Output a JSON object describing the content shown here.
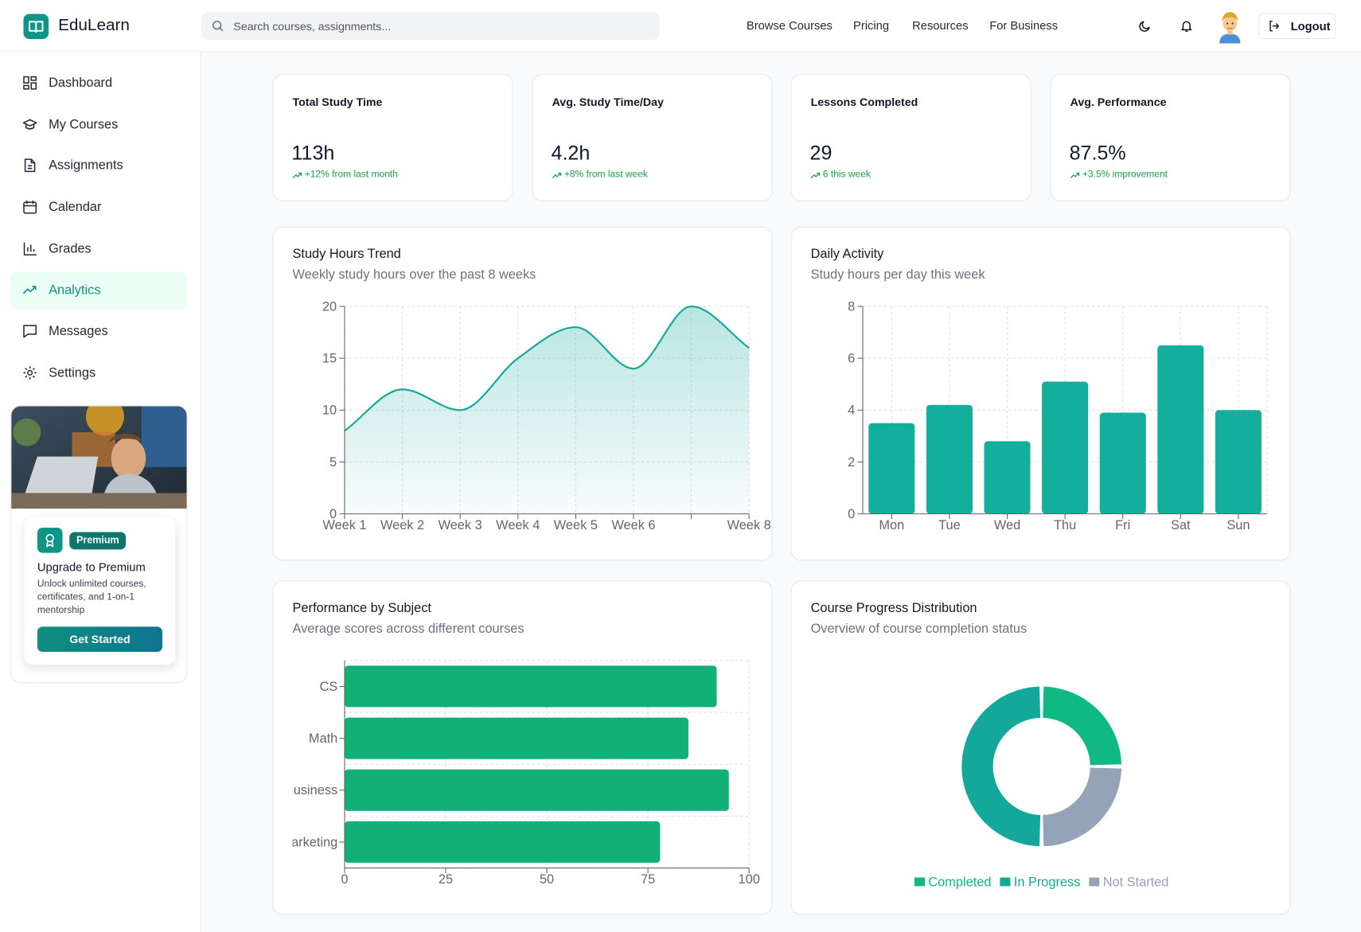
{
  "header": {
    "brand": "EduLearn",
    "search_placeholder": "Search courses, assignments...",
    "nav": [
      "Browse Courses",
      "Pricing",
      "Resources",
      "For Business"
    ],
    "logout": "Logout"
  },
  "sidebar": {
    "items": [
      "Dashboard",
      "My Courses",
      "Assignments",
      "Calendar",
      "Grades",
      "Analytics",
      "Messages",
      "Settings"
    ]
  },
  "promo": {
    "badge": "Premium",
    "title": "Upgrade to Premium",
    "text": "Unlock unlimited courses, certificates, and 1-on-1 mentorship",
    "button": "Get Started"
  },
  "stats": [
    {
      "label": "Total Study Time",
      "value": "113h",
      "change": "+12% from last month"
    },
    {
      "label": "Avg. Study Time/Day",
      "value": "4.2h",
      "change": "+8% from last week"
    },
    {
      "label": "Lessons Completed",
      "value": "29",
      "change": "6 this week"
    },
    {
      "label": "Avg. Performance",
      "value": "87.5%",
      "change": "+3.5% improvement"
    }
  ],
  "chart_data": [
    {
      "type": "area",
      "title": "Study Hours Trend",
      "subtitle": "Weekly study hours over the past 8 weeks",
      "categories": [
        "Week 1",
        "Week 2",
        "Week 3",
        "Week 4",
        "Week 5",
        "Week 6",
        null,
        "Week 8"
      ],
      "values": [
        8,
        12,
        10,
        15,
        18,
        14,
        20,
        16
      ],
      "color": "#14a89a",
      "ylim": [
        0,
        20
      ],
      "yticks": [
        0,
        5,
        10,
        15,
        20
      ],
      "grid": true
    },
    {
      "type": "bar",
      "title": "Daily Activity",
      "subtitle": "Study hours per day this week",
      "categories": [
        "Mon",
        "Tue",
        "Wed",
        "Thu",
        "Fri",
        "Sat",
        "Sun"
      ],
      "values": [
        3.5,
        4.2,
        2.8,
        5.1,
        3.9,
        6.5,
        4.0
      ],
      "color": "#14ae9c",
      "ylim": [
        0,
        8
      ],
      "yticks": [
        0,
        2,
        4,
        6,
        8
      ],
      "grid": true
    },
    {
      "type": "hbar",
      "title": "Performance by Subject",
      "subtitle": "Average scores across different courses",
      "categories": [
        "CS",
        "Math",
        "Business",
        "Marketing"
      ],
      "values": [
        92,
        85,
        95,
        78
      ],
      "color": "#12b076",
      "xlim": [
        0,
        100
      ],
      "xticks": [
        0,
        25,
        50,
        75,
        100
      ],
      "grid": true
    },
    {
      "type": "donut",
      "title": "Course Progress Distribution",
      "subtitle": "Overview of course completion status",
      "categories": [
        "Completed",
        "In Progress",
        "Not Started"
      ],
      "values": [
        25,
        50,
        25
      ],
      "colors": [
        "#10b981",
        "#14a89a",
        "#94a3b8"
      ],
      "legend": "bottom"
    }
  ]
}
